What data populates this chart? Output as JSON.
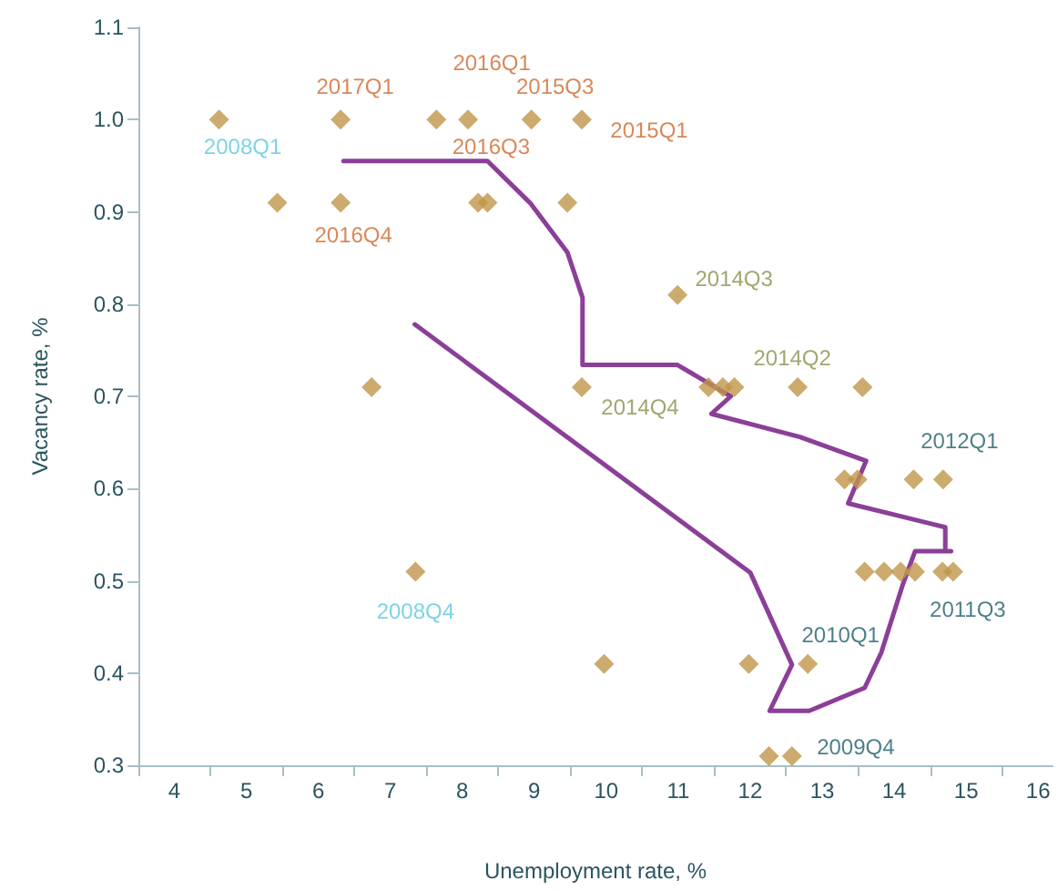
{
  "chart_data": {
    "type": "scatter",
    "xlabel": "Unemployment rate, %",
    "ylabel": "Vacancy rate, %",
    "xlim": [
      3.5,
      16.2
    ],
    "xticks": [
      {
        "value": 3.5,
        "label": null
      },
      4,
      {
        "value": 4.5,
        "label": null
      },
      5,
      {
        "value": 5.5,
        "label": null
      },
      6,
      {
        "value": 6.5,
        "label": null
      },
      7,
      {
        "value": 7.5,
        "label": null
      },
      8,
      {
        "value": 8.5,
        "label": null
      },
      9,
      {
        "value": 9.5,
        "label": null
      },
      10,
      {
        "value": 10.5,
        "label": null
      },
      11,
      {
        "value": 11.5,
        "label": null
      },
      12,
      {
        "value": 12.5,
        "label": null
      },
      13,
      {
        "value": 13.5,
        "label": null
      },
      14,
      {
        "value": 14.5,
        "label": null
      },
      15,
      {
        "value": 15.5,
        "label": null
      },
      16
    ],
    "ylim": [
      0.3,
      1.1
    ],
    "yticks": [
      0.3,
      0.4,
      0.5,
      0.6,
      0.7,
      0.8,
      0.9,
      {
        "value": 1.0,
        "label": "1.0"
      },
      1.1
    ],
    "series": [
      {
        "color": "#c0954a",
        "marker": "diamond",
        "x": [
          4.62,
          6.31,
          7.64,
          8.08,
          8.96,
          9.66,
          5.43,
          6.31,
          8.22,
          8.35,
          9.46,
          10.99,
          6.74,
          9.66,
          11.42,
          11.62,
          11.78,
          12.66,
          13.56,
          13.31,
          13.49,
          14.27,
          14.68,
          13.59,
          13.86,
          14.09,
          14.29,
          14.67,
          14.82,
          7.35,
          9.97,
          11.98,
          12.8,
          12.26,
          12.58
        ],
        "values": [
          1.0,
          1.0,
          1.0,
          1.0,
          1.0,
          1.0,
          0.91,
          0.91,
          0.91,
          0.91,
          0.91,
          0.81,
          0.71,
          0.71,
          0.71,
          0.71,
          0.71,
          0.71,
          0.71,
          0.61,
          0.61,
          0.61,
          0.61,
          0.51,
          0.51,
          0.51,
          0.51,
          0.51,
          0.51,
          0.51,
          0.41,
          0.41,
          0.41,
          0.31,
          0.31
        ]
      },
      {
        "type": "line",
        "color": "#8b3f98",
        "line_style": "solid",
        "x": [
          7.34,
          12.0,
          12.58,
          12.27,
          12.82,
          13.59,
          13.82,
          14.12,
          14.29,
          14.79,
          14.71,
          14.71,
          13.36,
          13.61,
          12.69,
          11.46,
          11.73,
          10.99,
          9.67,
          9.67,
          9.46,
          8.95,
          8.35,
          6.35
        ],
        "values": [
          0.778,
          0.509,
          0.409,
          0.359,
          0.359,
          0.384,
          0.422,
          0.496,
          0.532,
          0.532,
          0.532,
          0.558,
          0.584,
          0.63,
          0.656,
          0.681,
          0.7,
          0.734,
          0.734,
          0.807,
          0.856,
          0.909,
          0.955,
          0.955
        ]
      }
    ],
    "annotations": [
      {
        "text": "2008Q1",
        "x": 4.62,
        "y": 1.0
      },
      {
        "text": "2017Q1",
        "x": 6.31,
        "y": 1.0
      },
      {
        "text": "2016Q1",
        "x": 8.08,
        "y": 1.0
      },
      {
        "text": "2015Q3",
        "x": 8.96,
        "y": 1.0
      },
      {
        "text": "2015Q1",
        "x": 9.66,
        "y": 1.0
      },
      {
        "text": "2016Q3",
        "x": 8.35,
        "y": 0.955
      },
      {
        "text": "2016Q4",
        "x": 6.31,
        "y": 0.91
      },
      {
        "text": "2014Q3",
        "x": 10.99,
        "y": 0.81
      },
      {
        "text": "2014Q2",
        "x": 12.66,
        "y": 0.71
      },
      {
        "text": "2014Q4",
        "x": 9.66,
        "y": 0.71
      },
      {
        "text": "2012Q1",
        "x": 14.68,
        "y": 0.61
      },
      {
        "text": "2011Q3",
        "x": 14.82,
        "y": 0.51
      },
      {
        "text": "2010Q1",
        "x": 12.8,
        "y": 0.41
      },
      {
        "text": "2009Q4",
        "x": 12.58,
        "y": 0.31
      },
      {
        "text": "2008Q4",
        "x": 7.35,
        "y": 0.51
      }
    ]
  }
}
